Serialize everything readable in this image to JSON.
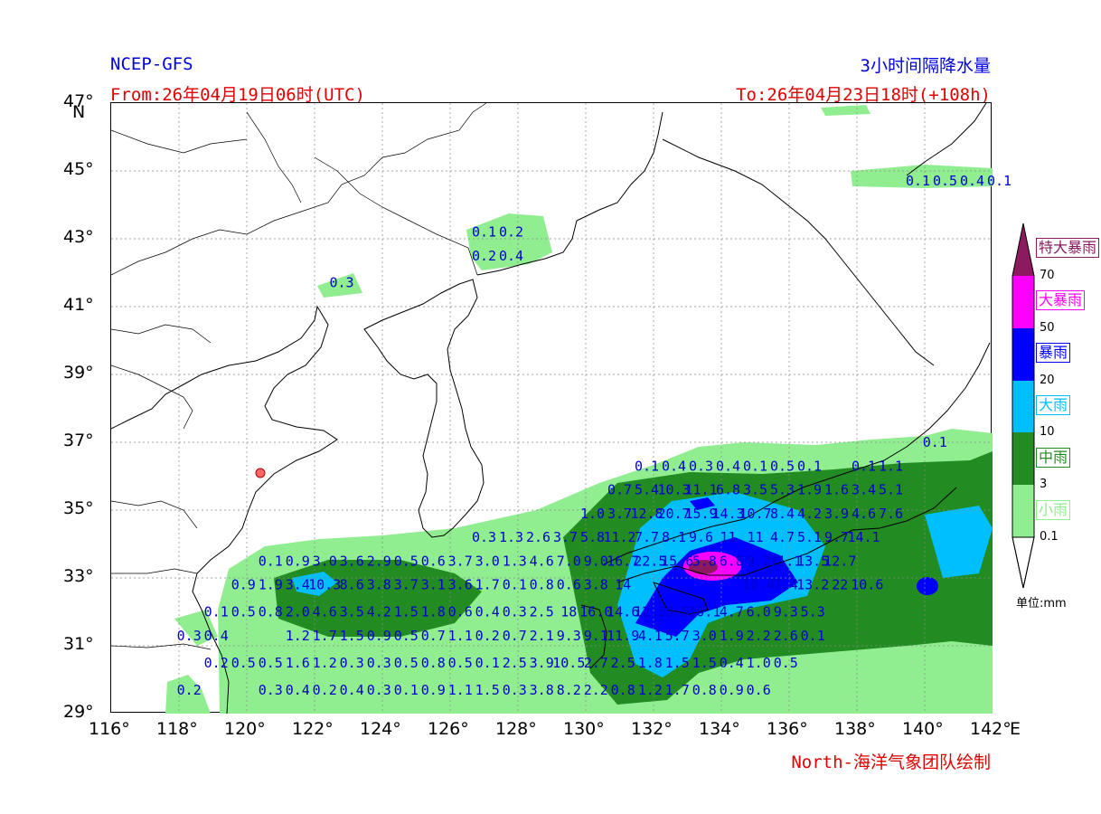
{
  "header": {
    "model": "NCEP-GFS",
    "product": "3小时间隔降水量",
    "from": "From:26年04月19日06时(UTC)",
    "to": "To:26年04月23日18时(+108h)",
    "credit": "North-海洋气象团队绘制"
  },
  "axes": {
    "lat_ticks": [
      "47°",
      "45°",
      "43°",
      "41°",
      "39°",
      "37°",
      "35°",
      "33°",
      "31°",
      "29°"
    ],
    "lat_unit": "N",
    "lon_ticks": [
      "116°",
      "118°",
      "120°",
      "122°",
      "124°",
      "126°",
      "128°",
      "130°",
      "132°",
      "134°",
      "136°",
      "138°",
      "140°",
      "142°"
    ],
    "lon_unit": "E"
  },
  "legend": {
    "categories": [
      {
        "label": "特大暴雨",
        "color": "#8b1a5e"
      },
      {
        "label": "大暴雨",
        "color": "#ff00ff"
      },
      {
        "label": "暴雨",
        "color": "#0000ff"
      },
      {
        "label": "大雨",
        "color": "#00bfff"
      },
      {
        "label": "中雨",
        "color": "#228b22"
      },
      {
        "label": "小雨",
        "color": "#90ee90"
      }
    ],
    "thresholds": [
      "70",
      "50",
      "20",
      "10",
      "3",
      "0.1"
    ],
    "unit": "单位:mm"
  },
  "colors": {
    "light": "#90ee90",
    "moderate": "#228b22",
    "heavy": "#00bfff",
    "storm": "#0000ff",
    "severe": "#ff00ff",
    "extreme": "#8b1a5e"
  },
  "station_values": [
    {
      "lon": 139.8,
      "lat": 44.7,
      "t": "0.1"
    },
    {
      "lon": 140.6,
      "lat": 44.7,
      "t": "0.5"
    },
    {
      "lon": 141.4,
      "lat": 44.7,
      "t": "0.4"
    },
    {
      "lon": 142.2,
      "lat": 44.7,
      "t": "0.1"
    },
    {
      "lon": 127.0,
      "lat": 43.2,
      "t": "0.1"
    },
    {
      "lon": 127.8,
      "lat": 43.2,
      "t": "0.2"
    },
    {
      "lon": 127.0,
      "lat": 42.5,
      "t": "0.2"
    },
    {
      "lon": 127.8,
      "lat": 42.5,
      "t": "0.4"
    },
    {
      "lon": 122.8,
      "lat": 41.7,
      "t": "0.3"
    },
    {
      "lon": 140.3,
      "lat": 37.0,
      "t": "0.1"
    },
    {
      "lon": 131.8,
      "lat": 36.3,
      "t": "0.1"
    },
    {
      "lon": 132.6,
      "lat": 36.3,
      "t": "0.4"
    },
    {
      "lon": 133.4,
      "lat": 36.3,
      "t": "0.3"
    },
    {
      "lon": 134.2,
      "lat": 36.3,
      "t": "0.4"
    },
    {
      "lon": 135.0,
      "lat": 36.3,
      "t": "0.1"
    },
    {
      "lon": 135.8,
      "lat": 36.3,
      "t": "0.5"
    },
    {
      "lon": 136.6,
      "lat": 36.3,
      "t": "0.1"
    },
    {
      "lon": 138.2,
      "lat": 36.3,
      "t": "0.1"
    },
    {
      "lon": 139.0,
      "lat": 36.3,
      "t": "1.1"
    },
    {
      "lon": 131.0,
      "lat": 35.6,
      "t": "0.7"
    },
    {
      "lon": 131.8,
      "lat": 35.6,
      "t": "5.4"
    },
    {
      "lon": 132.6,
      "lat": 35.6,
      "t": "10.3"
    },
    {
      "lon": 133.4,
      "lat": 35.6,
      "t": "11.1"
    },
    {
      "lon": 134.2,
      "lat": 35.6,
      "t": "6.8"
    },
    {
      "lon": 135.0,
      "lat": 35.6,
      "t": "3.5"
    },
    {
      "lon": 135.8,
      "lat": 35.6,
      "t": "5.3"
    },
    {
      "lon": 136.6,
      "lat": 35.6,
      "t": "1.9"
    },
    {
      "lon": 137.4,
      "lat": 35.6,
      "t": "1.6"
    },
    {
      "lon": 138.2,
      "lat": 35.6,
      "t": "3.4"
    },
    {
      "lon": 139.0,
      "lat": 35.6,
      "t": "5.1"
    },
    {
      "lon": 130.2,
      "lat": 34.9,
      "t": "1.0"
    },
    {
      "lon": 131.0,
      "lat": 34.9,
      "t": "3.7"
    },
    {
      "lon": 131.8,
      "lat": 34.9,
      "t": "12.8"
    },
    {
      "lon": 132.6,
      "lat": 34.9,
      "t": "20.7"
    },
    {
      "lon": 133.4,
      "lat": 34.9,
      "t": "15.9"
    },
    {
      "lon": 134.2,
      "lat": 34.9,
      "t": "14.3"
    },
    {
      "lon": 135.0,
      "lat": 34.9,
      "t": "10.7"
    },
    {
      "lon": 135.8,
      "lat": 34.9,
      "t": "8.4"
    },
    {
      "lon": 136.6,
      "lat": 34.9,
      "t": "4.2"
    },
    {
      "lon": 137.4,
      "lat": 34.9,
      "t": "3.9"
    },
    {
      "lon": 138.2,
      "lat": 34.9,
      "t": "4.6"
    },
    {
      "lon": 139.0,
      "lat": 34.9,
      "t": "7.6"
    },
    {
      "lon": 127.0,
      "lat": 34.2,
      "t": "0.3"
    },
    {
      "lon": 127.8,
      "lat": 34.2,
      "t": "1.3"
    },
    {
      "lon": 128.6,
      "lat": 34.2,
      "t": "2.6"
    },
    {
      "lon": 129.4,
      "lat": 34.2,
      "t": "3.7"
    },
    {
      "lon": 130.2,
      "lat": 34.2,
      "t": "5.8"
    },
    {
      "lon": 131.0,
      "lat": 34.2,
      "t": "11.2"
    },
    {
      "lon": 131.8,
      "lat": 34.2,
      "t": "7.7"
    },
    {
      "lon": 132.6,
      "lat": 34.2,
      "t": "8.1"
    },
    {
      "lon": 133.4,
      "lat": 34.2,
      "t": "9.6"
    },
    {
      "lon": 134.2,
      "lat": 34.2,
      "t": "11"
    },
    {
      "lon": 135.0,
      "lat": 34.2,
      "t": "11"
    },
    {
      "lon": 135.8,
      "lat": 34.2,
      "t": "4.7"
    },
    {
      "lon": 136.6,
      "lat": 34.2,
      "t": "5.1"
    },
    {
      "lon": 137.4,
      "lat": 34.2,
      "t": "9.7"
    },
    {
      "lon": 138.2,
      "lat": 34.2,
      "t": "14.1"
    },
    {
      "lon": 120.7,
      "lat": 33.5,
      "t": "0.1"
    },
    {
      "lon": 121.5,
      "lat": 33.5,
      "t": "0.9"
    },
    {
      "lon": 122.3,
      "lat": 33.5,
      "t": "3.0"
    },
    {
      "lon": 123.1,
      "lat": 33.5,
      "t": "3.6"
    },
    {
      "lon": 123.9,
      "lat": 33.5,
      "t": "2.9"
    },
    {
      "lon": 124.7,
      "lat": 33.5,
      "t": "0.5"
    },
    {
      "lon": 125.5,
      "lat": 33.5,
      "t": "0.6"
    },
    {
      "lon": 126.3,
      "lat": 33.5,
      "t": "3.7"
    },
    {
      "lon": 127.1,
      "lat": 33.5,
      "t": "3.0"
    },
    {
      "lon": 127.9,
      "lat": 33.5,
      "t": "1.3"
    },
    {
      "lon": 128.7,
      "lat": 33.5,
      "t": "4.6"
    },
    {
      "lon": 129.5,
      "lat": 33.5,
      "t": "7.0"
    },
    {
      "lon": 130.3,
      "lat": 33.5,
      "t": "9.0"
    },
    {
      "lon": 131.1,
      "lat": 33.5,
      "t": "16.7"
    },
    {
      "lon": 131.9,
      "lat": 33.5,
      "t": "22.5"
    },
    {
      "lon": 132.7,
      "lat": 33.5,
      "t": "15.6"
    },
    {
      "lon": 133.5,
      "lat": 33.5,
      "t": "5.8"
    },
    {
      "lon": 134.3,
      "lat": 33.5,
      "t": "6.8"
    },
    {
      "lon": 135.1,
      "lat": 33.5,
      "t": "9.2"
    },
    {
      "lon": 135.9,
      "lat": 33.5,
      "t": "11.1"
    },
    {
      "lon": 136.7,
      "lat": 33.5,
      "t": "13.5"
    },
    {
      "lon": 137.5,
      "lat": 33.5,
      "t": "12.7"
    },
    {
      "lon": 119.9,
      "lat": 32.8,
      "t": "0.9"
    },
    {
      "lon": 120.7,
      "lat": 32.8,
      "t": "1.9"
    },
    {
      "lon": 121.5,
      "lat": 32.8,
      "t": "3.4"
    },
    {
      "lon": 122.3,
      "lat": 32.8,
      "t": "10.3"
    },
    {
      "lon": 123.1,
      "lat": 32.8,
      "t": "8.6"
    },
    {
      "lon": 123.9,
      "lat": 32.8,
      "t": "3.8"
    },
    {
      "lon": 124.7,
      "lat": 32.8,
      "t": "3.7"
    },
    {
      "lon": 125.5,
      "lat": 32.8,
      "t": "3.1"
    },
    {
      "lon": 126.3,
      "lat": 32.8,
      "t": "3.6"
    },
    {
      "lon": 127.1,
      "lat": 32.8,
      "t": "1.7"
    },
    {
      "lon": 127.9,
      "lat": 32.8,
      "t": "0.1"
    },
    {
      "lon": 128.7,
      "lat": 32.8,
      "t": "0.8"
    },
    {
      "lon": 129.5,
      "lat": 32.8,
      "t": "0.6"
    },
    {
      "lon": 130.3,
      "lat": 32.8,
      "t": "3.8"
    },
    {
      "lon": 131.1,
      "lat": 32.8,
      "t": "14"
    },
    {
      "lon": 135.1,
      "lat": 32.8,
      "t": "10.4"
    },
    {
      "lon": 135.9,
      "lat": 32.8,
      "t": "7.4"
    },
    {
      "lon": 136.7,
      "lat": 32.8,
      "t": "13.2"
    },
    {
      "lon": 137.5,
      "lat": 32.8,
      "t": "22"
    },
    {
      "lon": 138.3,
      "lat": 32.8,
      "t": "10.6"
    },
    {
      "lon": 119.1,
      "lat": 32.0,
      "t": "0.1"
    },
    {
      "lon": 119.9,
      "lat": 32.0,
      "t": "0.5"
    },
    {
      "lon": 120.7,
      "lat": 32.0,
      "t": "0.8"
    },
    {
      "lon": 121.5,
      "lat": 32.0,
      "t": "2.0"
    },
    {
      "lon": 122.3,
      "lat": 32.0,
      "t": "4.6"
    },
    {
      "lon": 123.1,
      "lat": 32.0,
      "t": "3.5"
    },
    {
      "lon": 123.9,
      "lat": 32.0,
      "t": "4.2"
    },
    {
      "lon": 124.7,
      "lat": 32.0,
      "t": "1.5"
    },
    {
      "lon": 125.5,
      "lat": 32.0,
      "t": "1.8"
    },
    {
      "lon": 126.3,
      "lat": 32.0,
      "t": "0.6"
    },
    {
      "lon": 127.1,
      "lat": 32.0,
      "t": "0.4"
    },
    {
      "lon": 127.9,
      "lat": 32.0,
      "t": "0.3"
    },
    {
      "lon": 128.7,
      "lat": 32.0,
      "t": "2.5"
    },
    {
      "lon": 129.5,
      "lat": 32.0,
      "t": "18"
    },
    {
      "lon": 130.3,
      "lat": 32.0,
      "t": "16.0"
    },
    {
      "lon": 131.1,
      "lat": 32.0,
      "t": "14.6"
    },
    {
      "lon": 131.9,
      "lat": 32.0,
      "t": "12.5"
    },
    {
      "lon": 132.7,
      "lat": 32.0,
      "t": "8.5"
    },
    {
      "lon": 133.5,
      "lat": 32.0,
      "t": "10.1"
    },
    {
      "lon": 134.3,
      "lat": 32.0,
      "t": "4.7"
    },
    {
      "lon": 135.1,
      "lat": 32.0,
      "t": "6.0"
    },
    {
      "lon": 135.9,
      "lat": 32.0,
      "t": "9.3"
    },
    {
      "lon": 136.7,
      "lat": 32.0,
      "t": "5.3"
    },
    {
      "lon": 118.3,
      "lat": 31.3,
      "t": "0.3"
    },
    {
      "lon": 119.1,
      "lat": 31.3,
      "t": "0.4"
    },
    {
      "lon": 121.5,
      "lat": 31.3,
      "t": "1.2"
    },
    {
      "lon": 122.3,
      "lat": 31.3,
      "t": "1.7"
    },
    {
      "lon": 123.1,
      "lat": 31.3,
      "t": "1.5"
    },
    {
      "lon": 123.9,
      "lat": 31.3,
      "t": "0.9"
    },
    {
      "lon": 124.7,
      "lat": 31.3,
      "t": "0.5"
    },
    {
      "lon": 125.5,
      "lat": 31.3,
      "t": "0.7"
    },
    {
      "lon": 126.3,
      "lat": 31.3,
      "t": "1.1"
    },
    {
      "lon": 127.1,
      "lat": 31.3,
      "t": "0.2"
    },
    {
      "lon": 127.9,
      "lat": 31.3,
      "t": "0.7"
    },
    {
      "lon": 128.7,
      "lat": 31.3,
      "t": "2.1"
    },
    {
      "lon": 129.5,
      "lat": 31.3,
      "t": "9.3"
    },
    {
      "lon": 130.3,
      "lat": 31.3,
      "t": "9.1"
    },
    {
      "lon": 131.1,
      "lat": 31.3,
      "t": "11.9"
    },
    {
      "lon": 131.9,
      "lat": 31.3,
      "t": "4.1"
    },
    {
      "lon": 132.7,
      "lat": 31.3,
      "t": "5.7"
    },
    {
      "lon": 133.5,
      "lat": 31.3,
      "t": "3.0"
    },
    {
      "lon": 134.3,
      "lat": 31.3,
      "t": "1.9"
    },
    {
      "lon": 135.1,
      "lat": 31.3,
      "t": "2.2"
    },
    {
      "lon": 135.9,
      "lat": 31.3,
      "t": "2.6"
    },
    {
      "lon": 136.7,
      "lat": 31.3,
      "t": "0.1"
    },
    {
      "lon": 119.1,
      "lat": 30.5,
      "t": "0.2"
    },
    {
      "lon": 119.9,
      "lat": 30.5,
      "t": "0.5"
    },
    {
      "lon": 120.7,
      "lat": 30.5,
      "t": "0.5"
    },
    {
      "lon": 121.5,
      "lat": 30.5,
      "t": "1.6"
    },
    {
      "lon": 122.3,
      "lat": 30.5,
      "t": "1.2"
    },
    {
      "lon": 123.1,
      "lat": 30.5,
      "t": "0.3"
    },
    {
      "lon": 123.9,
      "lat": 30.5,
      "t": "0.3"
    },
    {
      "lon": 124.7,
      "lat": 30.5,
      "t": "0.5"
    },
    {
      "lon": 125.5,
      "lat": 30.5,
      "t": "0.8"
    },
    {
      "lon": 126.3,
      "lat": 30.5,
      "t": "0.5"
    },
    {
      "lon": 127.1,
      "lat": 30.5,
      "t": "0.1"
    },
    {
      "lon": 127.9,
      "lat": 30.5,
      "t": "2.5"
    },
    {
      "lon": 128.7,
      "lat": 30.5,
      "t": "3.9"
    },
    {
      "lon": 129.5,
      "lat": 30.5,
      "t": "10.5"
    },
    {
      "lon": 130.3,
      "lat": 30.5,
      "t": "2.7"
    },
    {
      "lon": 131.1,
      "lat": 30.5,
      "t": "2.5"
    },
    {
      "lon": 131.9,
      "lat": 30.5,
      "t": "1.8"
    },
    {
      "lon": 132.7,
      "lat": 30.5,
      "t": "1.5"
    },
    {
      "lon": 133.5,
      "lat": 30.5,
      "t": "1.5"
    },
    {
      "lon": 134.3,
      "lat": 30.5,
      "t": "0.4"
    },
    {
      "lon": 135.1,
      "lat": 30.5,
      "t": "1.0"
    },
    {
      "lon": 135.9,
      "lat": 30.5,
      "t": "0.5"
    },
    {
      "lon": 118.3,
      "lat": 29.7,
      "t": "0.2"
    },
    {
      "lon": 120.7,
      "lat": 29.7,
      "t": "0.3"
    },
    {
      "lon": 121.5,
      "lat": 29.7,
      "t": "0.4"
    },
    {
      "lon": 122.3,
      "lat": 29.7,
      "t": "0.2"
    },
    {
      "lon": 123.1,
      "lat": 29.7,
      "t": "0.4"
    },
    {
      "lon": 123.9,
      "lat": 29.7,
      "t": "0.3"
    },
    {
      "lon": 124.7,
      "lat": 29.7,
      "t": "0.1"
    },
    {
      "lon": 125.5,
      "lat": 29.7,
      "t": "0.9"
    },
    {
      "lon": 126.3,
      "lat": 29.7,
      "t": "1.1"
    },
    {
      "lon": 127.1,
      "lat": 29.7,
      "t": "1.5"
    },
    {
      "lon": 127.9,
      "lat": 29.7,
      "t": "0.3"
    },
    {
      "lon": 128.7,
      "lat": 29.7,
      "t": "3.8"
    },
    {
      "lon": 129.5,
      "lat": 29.7,
      "t": "8.2"
    },
    {
      "lon": 130.3,
      "lat": 29.7,
      "t": "2.2"
    },
    {
      "lon": 131.1,
      "lat": 29.7,
      "t": "0.8"
    },
    {
      "lon": 131.9,
      "lat": 29.7,
      "t": "1.2"
    },
    {
      "lon": 132.7,
      "lat": 29.7,
      "t": "1.7"
    },
    {
      "lon": 133.5,
      "lat": 29.7,
      "t": "0.8"
    },
    {
      "lon": 134.3,
      "lat": 29.7,
      "t": "0.9"
    },
    {
      "lon": 135.1,
      "lat": 29.7,
      "t": "0.6"
    }
  ]
}
